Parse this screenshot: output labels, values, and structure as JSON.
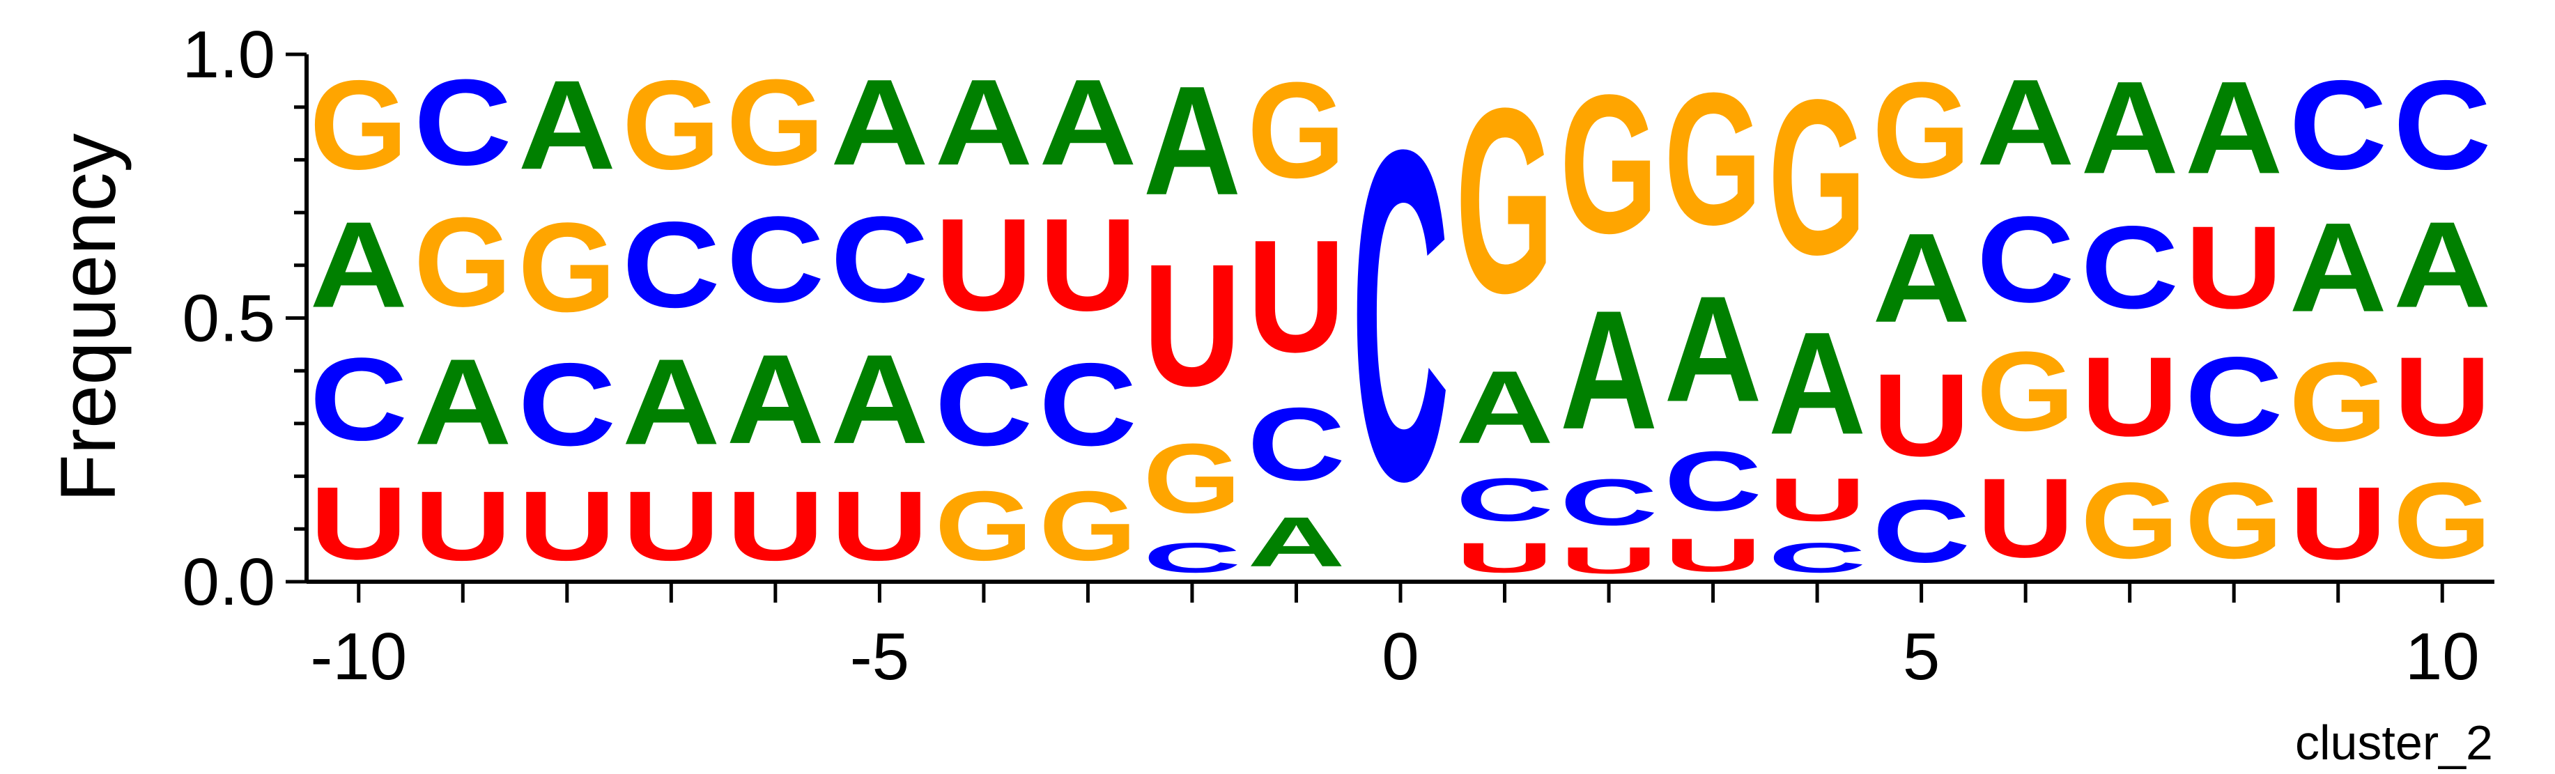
{
  "chart_data": {
    "type": "sequence-logo",
    "ylabel": "Frequency",
    "xlabel": "",
    "caption": "cluster_2",
    "ylim": [
      0,
      1
    ],
    "xlim": [
      -10.5,
      10.5
    ],
    "x_ticks": [
      "-10",
      "-5",
      "0",
      "5",
      "10"
    ],
    "x_tick_values": [
      -10,
      -5,
      0,
      5,
      10
    ],
    "y_ticks": [
      "0.0",
      "0.5",
      "1.0"
    ],
    "y_tick_values": [
      0,
      0.5,
      1.0
    ],
    "colors": {
      "A": "#008000",
      "C": "#0000ff",
      "G": "#ffa500",
      "U": "#ff0000"
    },
    "positions": [
      {
        "pos": -10,
        "stack": [
          [
            "U",
            0.22
          ],
          [
            "C",
            0.25
          ],
          [
            "A",
            0.26
          ],
          [
            "G",
            0.27
          ]
        ]
      },
      {
        "pos": -9,
        "stack": [
          [
            "U",
            0.21
          ],
          [
            "A",
            0.26
          ],
          [
            "G",
            0.27
          ],
          [
            "C",
            0.26
          ]
        ]
      },
      {
        "pos": -8,
        "stack": [
          [
            "U",
            0.21
          ],
          [
            "C",
            0.25
          ],
          [
            "G",
            0.27
          ],
          [
            "A",
            0.27
          ]
        ]
      },
      {
        "pos": -7,
        "stack": [
          [
            "U",
            0.21
          ],
          [
            "A",
            0.26
          ],
          [
            "C",
            0.26
          ],
          [
            "G",
            0.27
          ]
        ]
      },
      {
        "pos": -6,
        "stack": [
          [
            "U",
            0.21
          ],
          [
            "A",
            0.27
          ],
          [
            "C",
            0.26
          ],
          [
            "G",
            0.26
          ]
        ]
      },
      {
        "pos": -5,
        "stack": [
          [
            "U",
            0.21
          ],
          [
            "A",
            0.27
          ],
          [
            "C",
            0.26
          ],
          [
            "A",
            0.26
          ]
        ]
      },
      {
        "pos": -4,
        "stack": [
          [
            "G",
            0.21
          ],
          [
            "C",
            0.25
          ],
          [
            "U",
            0.28
          ],
          [
            "A",
            0.26
          ]
        ]
      },
      {
        "pos": -3,
        "stack": [
          [
            "G",
            0.21
          ],
          [
            "C",
            0.25
          ],
          [
            "U",
            0.28
          ],
          [
            "A",
            0.26
          ]
        ]
      },
      {
        "pos": -2,
        "stack": [
          [
            "C",
            0.09
          ],
          [
            "G",
            0.21
          ],
          [
            "U",
            0.37
          ],
          [
            "A",
            0.33
          ]
        ]
      },
      {
        "pos": -1,
        "stack": [
          [
            "A",
            0.15
          ],
          [
            "C",
            0.22
          ],
          [
            "U",
            0.34
          ],
          [
            "G",
            0.29
          ]
        ]
      },
      {
        "pos": 0,
        "stack": [
          [
            "C",
            1.0
          ]
        ]
      },
      {
        "pos": 1,
        "stack": [
          [
            "U",
            0.09
          ],
          [
            "C",
            0.13
          ],
          [
            "A",
            0.22
          ],
          [
            "G",
            0.56
          ]
        ]
      },
      {
        "pos": 2,
        "stack": [
          [
            "U",
            0.08
          ],
          [
            "C",
            0.14
          ],
          [
            "A",
            0.36
          ],
          [
            "G",
            0.42
          ]
        ]
      },
      {
        "pos": 3,
        "stack": [
          [
            "U",
            0.1
          ],
          [
            "C",
            0.18
          ],
          [
            "A",
            0.32
          ],
          [
            "G",
            0.4
          ]
        ]
      },
      {
        "pos": 4,
        "stack": [
          [
            "C",
            0.09
          ],
          [
            "U",
            0.13
          ],
          [
            "A",
            0.31
          ],
          [
            "G",
            0.47
          ]
        ]
      },
      {
        "pos": 5,
        "stack": [
          [
            "C",
            0.19
          ],
          [
            "U",
            0.25
          ],
          [
            "A",
            0.27
          ],
          [
            "G",
            0.29
          ]
        ]
      },
      {
        "pos": 6,
        "stack": [
          [
            "U",
            0.24
          ],
          [
            "G",
            0.24
          ],
          [
            "C",
            0.26
          ],
          [
            "A",
            0.26
          ]
        ]
      },
      {
        "pos": 7,
        "stack": [
          [
            "G",
            0.23
          ],
          [
            "U",
            0.24
          ],
          [
            "C",
            0.25
          ],
          [
            "A",
            0.28
          ]
        ]
      },
      {
        "pos": 8,
        "stack": [
          [
            "G",
            0.23
          ],
          [
            "C",
            0.24
          ],
          [
            "U",
            0.25
          ],
          [
            "A",
            0.28
          ]
        ]
      },
      {
        "pos": 9,
        "stack": [
          [
            "U",
            0.22
          ],
          [
            "G",
            0.24
          ],
          [
            "A",
            0.27
          ],
          [
            "C",
            0.27
          ]
        ]
      },
      {
        "pos": 10,
        "stack": [
          [
            "G",
            0.23
          ],
          [
            "U",
            0.24
          ],
          [
            "A",
            0.26
          ],
          [
            "C",
            0.27
          ]
        ]
      }
    ]
  }
}
